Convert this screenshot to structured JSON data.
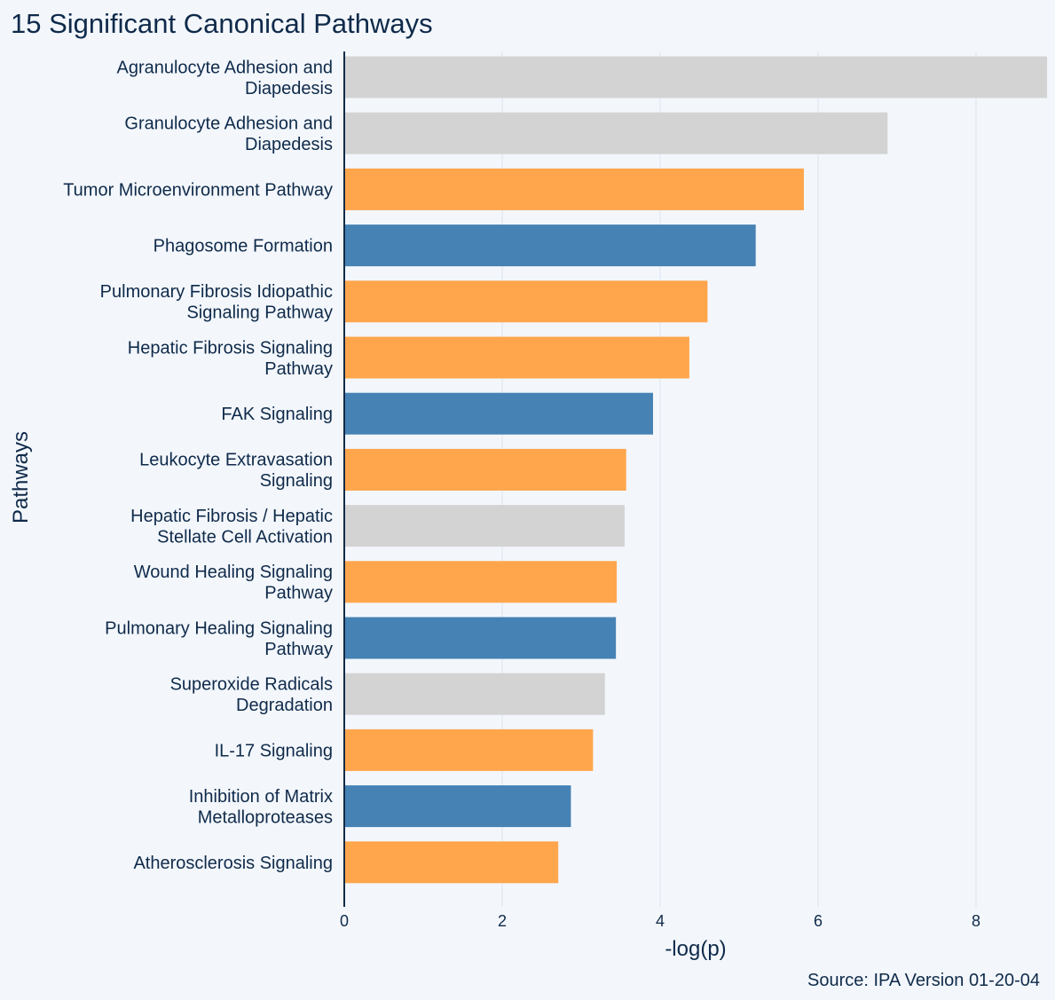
{
  "chart_data": {
    "type": "bar",
    "orientation": "horizontal",
    "title": "15 Significant Canonical Pathways",
    "xlabel": "-log(p)",
    "ylabel": "Pathways",
    "xlim": [
      0,
      8.9
    ],
    "xticks": [
      0,
      2,
      4,
      6,
      8
    ],
    "grid": true,
    "source": "Source: IPA Version 01-20-04",
    "categories": [
      [
        "Agranulocyte Adhesion and",
        "Diapedesis"
      ],
      [
        "Granulocyte Adhesion and",
        "Diapedesis"
      ],
      [
        "Tumor Microenvironment Pathway"
      ],
      [
        "Phagosome Formation"
      ],
      [
        "Pulmonary Fibrosis Idiopathic",
        "Signaling Pathway"
      ],
      [
        "Hepatic Fibrosis Signaling",
        "Pathway"
      ],
      [
        "FAK Signaling"
      ],
      [
        "Leukocyte Extravasation",
        "Signaling"
      ],
      [
        "Hepatic Fibrosis / Hepatic",
        "Stellate Cell Activation"
      ],
      [
        "Wound Healing Signaling",
        "Pathway"
      ],
      [
        "Pulmonary Healing Signaling",
        "Pathway"
      ],
      [
        "Superoxide Radicals",
        "Degradation"
      ],
      [
        "IL-17 Signaling"
      ],
      [
        "Inhibition of Matrix",
        "Metalloproteases"
      ],
      [
        "Atherosclerosis Signaling"
      ]
    ],
    "values": [
      8.9,
      6.88,
      5.82,
      5.21,
      4.6,
      4.37,
      3.91,
      3.57,
      3.55,
      3.45,
      3.44,
      3.3,
      3.15,
      2.87,
      2.71
    ],
    "bar_colors": [
      "#d3d3d3",
      "#d3d3d3",
      "#ffa64d",
      "#4682b4",
      "#ffa64d",
      "#ffa64d",
      "#4682b4",
      "#ffa64d",
      "#d3d3d3",
      "#ffa64d",
      "#4682b4",
      "#d3d3d3",
      "#ffa64d",
      "#4682b4",
      "#ffa64d"
    ]
  },
  "colors": {
    "background": "#f3f7fc",
    "text": "#0f2a4a",
    "grid": "#dde3ee",
    "axis": "#0f2a4a"
  }
}
